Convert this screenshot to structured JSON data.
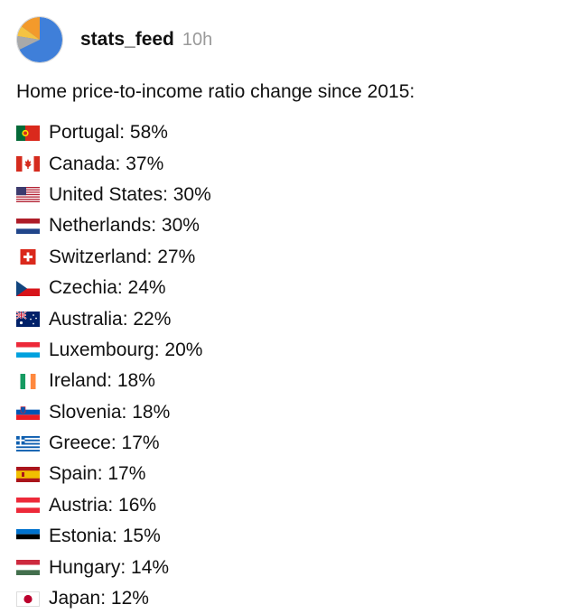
{
  "post": {
    "username": "stats_feed",
    "timestamp": "10h",
    "headline": "Home price-to-income ratio change since 2015:"
  },
  "items": [
    {
      "text": "Portugal: 58%",
      "flag": "portugal-flag-icon",
      "country": "Portugal",
      "value": 58
    },
    {
      "text": "Canada: 37%",
      "flag": "canada-flag-icon",
      "country": "Canada",
      "value": 37
    },
    {
      "text": "United States: 30%",
      "flag": "united-states-flag-icon",
      "country": "United States",
      "value": 30
    },
    {
      "text": "Netherlands: 30%",
      "flag": "netherlands-flag-icon",
      "country": "Netherlands",
      "value": 30
    },
    {
      "text": "Switzerland: 27%",
      "flag": "switzerland-flag-icon",
      "country": "Switzerland",
      "value": 27
    },
    {
      "text": "Czechia: 24%",
      "flag": "czechia-flag-icon",
      "country": "Czechia",
      "value": 24
    },
    {
      "text": "Australia: 22%",
      "flag": "australia-flag-icon",
      "country": "Australia",
      "value": 22
    },
    {
      "text": "Luxembourg: 20%",
      "flag": "luxembourg-flag-icon",
      "country": "Luxembourg",
      "value": 20
    },
    {
      "text": "Ireland: 18%",
      "flag": "ireland-flag-icon",
      "country": "Ireland",
      "value": 18
    },
    {
      "text": "Slovenia: 18%",
      "flag": "slovenia-flag-icon",
      "country": "Slovenia",
      "value": 18
    },
    {
      "text": "Greece: 17%",
      "flag": "greece-flag-icon",
      "country": "Greece",
      "value": 17
    },
    {
      "text": "Spain: 17%",
      "flag": "spain-flag-icon",
      "country": "Spain",
      "value": 17
    },
    {
      "text": "Austria: 16%",
      "flag": "austria-flag-icon",
      "country": "Austria",
      "value": 16
    },
    {
      "text": "Estonia: 15%",
      "flag": "estonia-flag-icon",
      "country": "Estonia",
      "value": 15
    },
    {
      "text": "Hungary: 14%",
      "flag": "hungary-flag-icon",
      "country": "Hungary",
      "value": 14
    },
    {
      "text": "Japan: 12%",
      "flag": "japan-flag-icon",
      "country": "Japan",
      "value": 12
    }
  ],
  "colors": {
    "text": "#111111",
    "timestamp": "#9a9a9a",
    "avatar_blue": "#3f7fd9",
    "avatar_orange": "#f39a2b",
    "avatar_yellow": "#f5c342",
    "avatar_gray": "#a9a9a9"
  }
}
